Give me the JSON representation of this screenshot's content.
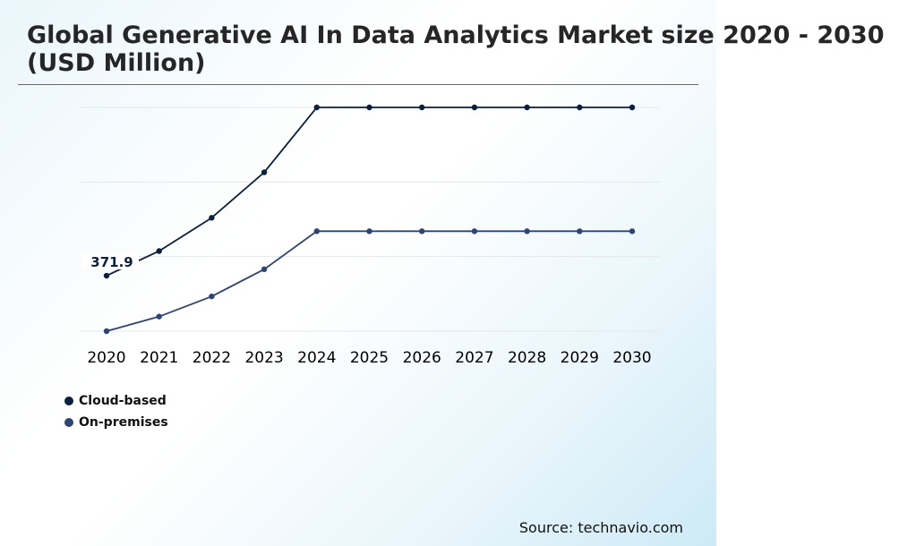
{
  "title": "Global Generative AI In Data Analytics Market size 2020 - 2030 (USD Million)",
  "source": "Source: technavio.com",
  "colors": {
    "cloud": "#0b1f3f",
    "onprem": "#2f4472",
    "grid": "#e4e8ec"
  },
  "chart_data": {
    "type": "line",
    "categories": [
      "2020",
      "2021",
      "2022",
      "2023",
      "2024",
      "2025",
      "2026",
      "2027",
      "2028",
      "2029",
      "2030"
    ],
    "ylim": [
      0,
      1500
    ],
    "grid": true,
    "legend_position": "bottom-left",
    "series": [
      {
        "name": "Cloud-based",
        "values": [
          371.9,
          537,
          760,
          1065,
          1500,
          1500,
          1500,
          1500,
          1500,
          1500,
          1500
        ]
      },
      {
        "name": "On-premises",
        "values": [
          0,
          98,
          233,
          415,
          670,
          670,
          670,
          670,
          670,
          670,
          670
        ]
      }
    ],
    "annotations": [
      {
        "series": 0,
        "index": 0,
        "text": "371.9"
      }
    ]
  }
}
